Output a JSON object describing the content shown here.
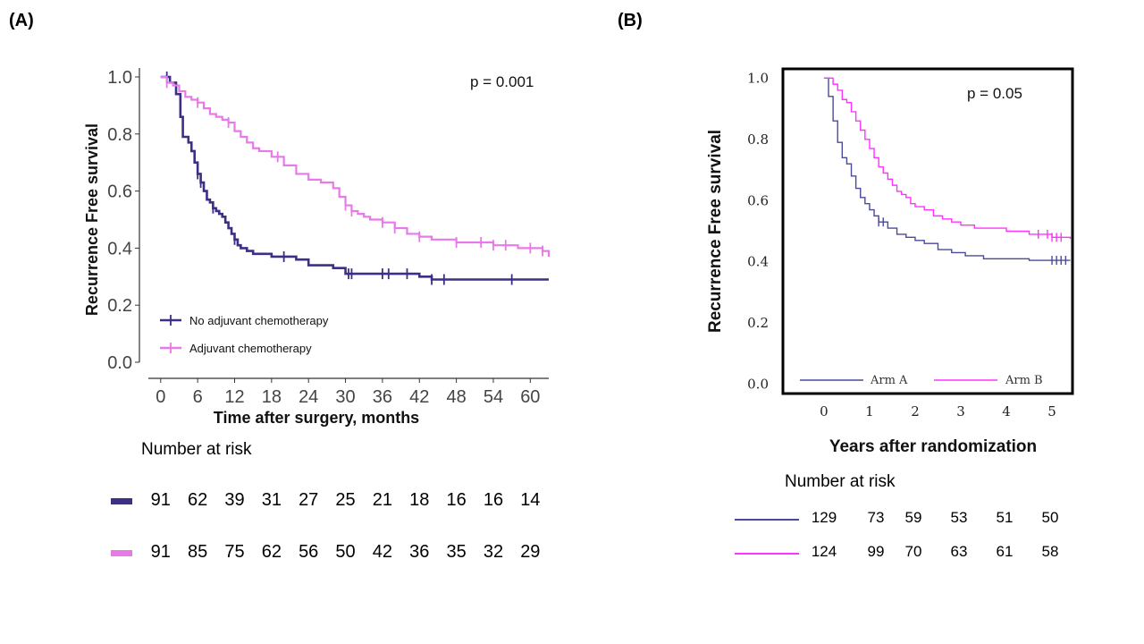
{
  "colors": {
    "no_adj": "#3b2f87",
    "adj": "#e879e8",
    "arm_a": "#4a4a9c",
    "arm_b": "#ff33ff"
  },
  "panel_a": {
    "label": "(A)",
    "p_value": "p = 0.001",
    "risk_title": "Number at risk",
    "risk_rows": [
      {
        "series": "No adjuvant chemotherapy",
        "values": [
          "91",
          "62",
          "39",
          "31",
          "27",
          "25",
          "21",
          "18",
          "16",
          "16",
          "14"
        ]
      },
      {
        "series": "Adjuvant chemotherapy",
        "values": [
          "91",
          "85",
          "75",
          "62",
          "56",
          "50",
          "42",
          "36",
          "35",
          "32",
          "29"
        ]
      }
    ]
  },
  "panel_b": {
    "label": "(B)",
    "p_value": "p = 0.05",
    "risk_title": "Number at risk",
    "risk_rows": [
      {
        "series": "Arm A",
        "values": [
          "129",
          "73",
          "59",
          "53",
          "51",
          "50"
        ]
      },
      {
        "series": "Arm B",
        "values": [
          "124",
          "99",
          "70",
          "63",
          "61",
          "58"
        ]
      }
    ]
  },
  "chart_data": [
    {
      "type": "line",
      "step": true,
      "title": "",
      "xlabel": "Time after surgery, months",
      "ylabel": "Recurrence Free survival",
      "xlim": [
        -2,
        63
      ],
      "ylim": [
        0,
        1.0
      ],
      "xticks": [
        0,
        6,
        12,
        18,
        24,
        30,
        36,
        42,
        48,
        54,
        60
      ],
      "yticks": [
        "0.0",
        "0.2",
        "0.4",
        "0.6",
        "0.8",
        "1.0"
      ],
      "legend_position": "bottom-left",
      "series": [
        {
          "name": "No adjuvant chemotherapy",
          "x": [
            0,
            1.5,
            2.5,
            3.2,
            3.6,
            4.5,
            5,
            5.5,
            6,
            6.5,
            7,
            7.5,
            8,
            8.5,
            9,
            9.5,
            10,
            10.5,
            11,
            11.5,
            12,
            12.5,
            13,
            14,
            15,
            16,
            18,
            20,
            22,
            24,
            26,
            28,
            30,
            32,
            36,
            40,
            42,
            44,
            48,
            63
          ],
          "y": [
            1.0,
            0.98,
            0.94,
            0.86,
            0.79,
            0.77,
            0.74,
            0.7,
            0.66,
            0.63,
            0.6,
            0.57,
            0.56,
            0.54,
            0.53,
            0.52,
            0.51,
            0.49,
            0.47,
            0.45,
            0.43,
            0.41,
            0.4,
            0.39,
            0.38,
            0.38,
            0.37,
            0.37,
            0.36,
            0.34,
            0.34,
            0.33,
            0.31,
            0.31,
            0.31,
            0.31,
            0.3,
            0.29,
            0.29,
            0.29
          ],
          "censor_x": [
            1,
            6,
            6.5,
            8.5,
            12,
            20,
            30.5,
            31,
            36,
            37,
            40,
            44,
            46,
            57
          ]
        },
        {
          "name": "Adjuvant chemotherapy",
          "x": [
            0,
            1,
            2,
            3,
            4,
            5,
            6,
            7,
            8,
            9,
            10,
            11,
            12,
            13,
            14,
            15,
            16,
            18,
            20,
            22,
            24,
            26,
            28,
            29,
            30,
            31,
            32,
            33,
            34,
            36,
            38,
            40,
            42,
            44,
            48,
            54,
            58,
            62,
            63
          ],
          "y": [
            1.0,
            0.98,
            0.97,
            0.95,
            0.93,
            0.92,
            0.91,
            0.89,
            0.87,
            0.86,
            0.85,
            0.84,
            0.81,
            0.79,
            0.77,
            0.75,
            0.74,
            0.72,
            0.69,
            0.66,
            0.64,
            0.63,
            0.61,
            0.58,
            0.55,
            0.53,
            0.52,
            0.51,
            0.5,
            0.49,
            0.47,
            0.45,
            0.44,
            0.43,
            0.42,
            0.41,
            0.4,
            0.39,
            0.37
          ],
          "censor_x": [
            1,
            6,
            11,
            19,
            30,
            31,
            36,
            38,
            42,
            48,
            52,
            54,
            56,
            60,
            62
          ]
        }
      ]
    },
    {
      "type": "line",
      "step": true,
      "title": "",
      "xlabel": "Years after randomization",
      "ylabel": "Recurrence Free survival",
      "xlim": [
        -0.9,
        5.45
      ],
      "ylim": [
        -0.03,
        1.03
      ],
      "xticks": [
        0,
        1,
        2,
        3,
        4,
        5
      ],
      "yticks": [
        "0.0",
        "0.2",
        "0.4",
        "0.6",
        "0.8",
        "1.0"
      ],
      "legend_position": "bottom",
      "series": [
        {
          "name": "Arm A",
          "x": [
            0,
            0.1,
            0.2,
            0.3,
            0.4,
            0.5,
            0.6,
            0.7,
            0.8,
            0.9,
            1.0,
            1.1,
            1.2,
            1.4,
            1.6,
            1.8,
            2.0,
            2.2,
            2.5,
            2.8,
            3.1,
            3.5,
            4.0,
            4.5,
            5.0,
            5.4
          ],
          "y": [
            1.0,
            0.94,
            0.86,
            0.79,
            0.74,
            0.72,
            0.68,
            0.64,
            0.61,
            0.59,
            0.57,
            0.55,
            0.53,
            0.51,
            0.49,
            0.48,
            0.47,
            0.46,
            0.44,
            0.43,
            0.42,
            0.41,
            0.41,
            0.405,
            0.405,
            0.405
          ],
          "censor_x": [
            1.2,
            1.3,
            5.0,
            5.1,
            5.2,
            5.3
          ]
        },
        {
          "name": "Arm B",
          "x": [
            0,
            0.2,
            0.3,
            0.4,
            0.5,
            0.6,
            0.7,
            0.8,
            0.9,
            1.0,
            1.1,
            1.2,
            1.3,
            1.4,
            1.5,
            1.6,
            1.7,
            1.8,
            1.9,
            2.0,
            2.2,
            2.4,
            2.6,
            2.8,
            3.0,
            3.3,
            3.6,
            4.0,
            4.5,
            5.0,
            5.4
          ],
          "y": [
            1.0,
            0.98,
            0.96,
            0.93,
            0.92,
            0.89,
            0.86,
            0.83,
            0.8,
            0.77,
            0.74,
            0.71,
            0.69,
            0.67,
            0.65,
            0.63,
            0.62,
            0.61,
            0.59,
            0.58,
            0.57,
            0.55,
            0.54,
            0.53,
            0.52,
            0.51,
            0.51,
            0.5,
            0.49,
            0.48,
            0.475
          ],
          "censor_x": [
            4.7,
            4.9,
            5.0,
            5.1,
            5.2
          ]
        }
      ]
    }
  ]
}
